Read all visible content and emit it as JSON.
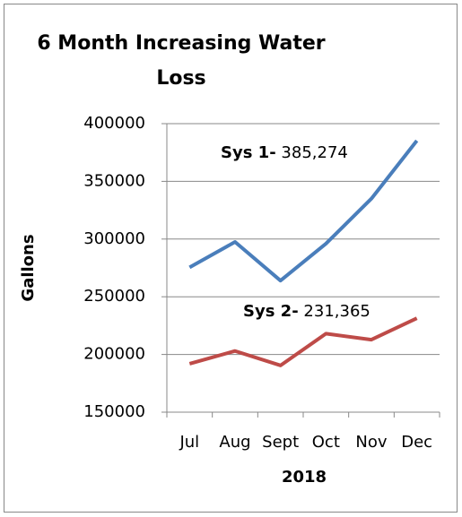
{
  "chart_data": {
    "type": "line",
    "title": [
      "6 Month Increasing Water",
      "Loss"
    ],
    "y_label": "Gallons",
    "x_label": "2018",
    "categories": [
      "Jul",
      "Aug",
      "Sept",
      "Oct",
      "Nov",
      "Dec"
    ],
    "series": [
      {
        "color": "#4a7ebb",
        "values": [
          275500,
          297500,
          264000,
          296000,
          335000,
          385274
        ]
      },
      {
        "color": "#be4b48",
        "values": [
          192000,
          203000,
          190500,
          218000,
          212800,
          231365
        ]
      }
    ],
    "annotations": [
      {
        "bold": "Sys 1-",
        "text": "385,274"
      },
      {
        "bold": "Sys 2-",
        "text": "231,365"
      }
    ],
    "ylim": [
      150000,
      400000
    ],
    "yticks": [
      150000,
      200000,
      250000,
      300000,
      350000,
      400000
    ],
    "grid": true
  }
}
